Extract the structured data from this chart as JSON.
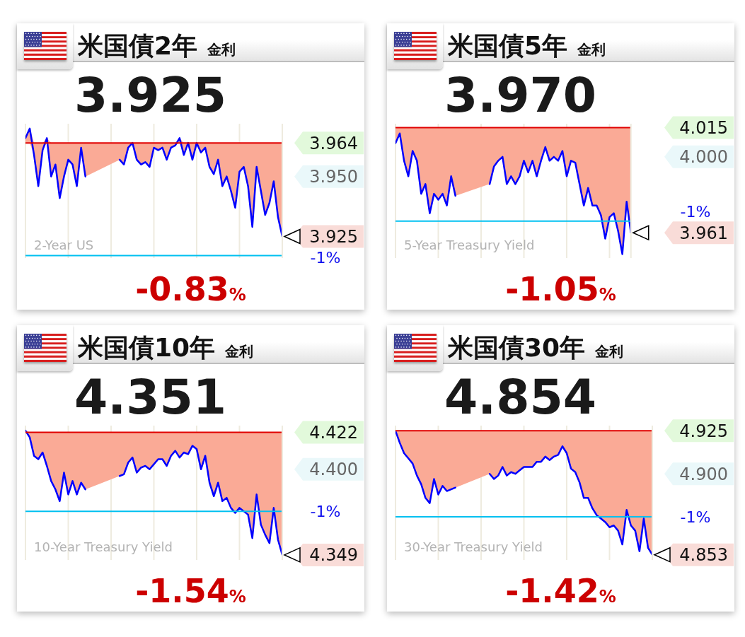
{
  "chart_data": [
    {
      "type": "line",
      "title": "米国債2年",
      "subtitle": "金利",
      "categories": [
        null,
        null,
        null,
        null,
        null,
        null,
        null,
        null,
        null,
        null,
        null,
        null,
        null,
        null,
        null,
        null,
        null,
        null,
        null,
        null,
        null,
        null,
        null,
        null,
        null,
        null,
        null,
        null,
        null,
        null,
        null,
        null,
        null,
        null,
        null,
        null,
        null,
        null,
        null,
        null,
        null,
        null,
        null,
        null,
        null,
        null,
        null,
        null,
        null,
        null,
        null,
        null,
        null,
        null,
        null,
        null,
        null,
        null,
        null,
        null,
        null
      ],
      "series": [
        {
          "type": "line",
          "color": "#0000ff",
          "values": [
            3.966,
            3.97,
            3.959,
            3.946,
            3.961,
            3.966,
            3.95,
            3.955,
            3.941,
            3.95,
            3.957,
            3.955,
            3.946,
            3.962,
            3.95,
            null,
            null,
            null,
            null,
            null,
            null,
            null,
            3.957,
            3.955,
            3.962,
            3.964,
            3.957,
            3.955,
            3.956,
            3.954,
            3.962,
            3.961,
            3.962,
            3.957,
            3.962,
            3.963,
            3.966,
            3.959,
            3.964,
            3.957,
            3.964,
            3.96,
            3.962,
            3.954,
            3.951,
            3.957,
            3.946,
            3.95,
            3.944,
            3.937,
            3.952,
            3.954,
            3.946,
            3.929,
            3.954,
            3.944,
            3.934,
            3.939,
            3.948,
            3.933,
            3.925
          ],
          "lower": [
            3.964,
            3.964,
            3.959,
            3.946,
            3.961,
            3.964,
            3.95,
            3.955,
            3.941,
            3.95,
            3.957,
            3.955,
            3.946,
            3.962,
            3.95,
            null,
            null,
            null,
            null,
            null,
            null,
            null,
            3.957,
            3.955,
            3.962,
            3.964,
            3.957,
            3.955,
            3.956,
            3.954,
            3.962,
            3.961,
            3.962,
            3.957,
            3.962,
            3.963,
            3.964,
            3.959,
            3.964,
            3.957,
            3.964,
            3.96,
            3.962,
            3.954,
            3.951,
            3.957,
            3.946,
            3.95,
            3.944,
            3.937,
            3.952,
            3.954,
            3.946,
            3.929,
            3.954,
            3.944,
            3.934,
            3.939,
            3.948,
            3.933,
            3.925
          ],
          "upper": [
            3.966,
            3.97,
            3.964,
            3.964,
            3.964,
            3.966,
            3.964,
            3.964,
            3.964,
            3.964,
            3.964,
            3.964,
            3.964,
            3.964,
            3.964,
            null,
            null,
            null,
            null,
            null,
            null,
            null,
            3.964,
            3.964,
            3.964,
            3.964,
            3.964,
            3.964,
            3.964,
            3.964,
            3.964,
            3.964,
            3.964,
            3.964,
            3.964,
            3.964,
            3.966,
            3.964,
            3.964,
            3.964,
            3.964,
            3.964,
            3.964,
            3.964,
            3.964,
            3.964,
            3.964,
            3.964,
            3.964,
            3.964,
            3.964,
            3.964,
            3.964,
            3.964,
            3.964,
            3.964,
            3.964,
            3.964,
            3.964,
            3.964,
            3.964
          ]
        }
      ],
      "ylim": [
        3.916,
        3.972
      ],
      "yticks": [
        {
          "value": 3.964,
          "label": "3.964"
        },
        {
          "value": 3.95,
          "label": "3.950"
        }
      ],
      "tick_labels": "y",
      "grid": "x",
      "ref_lines": [
        {
          "axis": "y",
          "value": 3.964,
          "color": "#e00000"
        },
        {
          "axis": "y",
          "value": 3.917,
          "color": "#00c0f0"
        }
      ],
      "annotations": [
        "3.925",
        "-0.83%",
        "2-Year US",
        "-1%",
        "3.925"
      ]
    },
    {
      "type": "line",
      "title": "米国債5年",
      "subtitle": "金利",
      "categories": [
        null,
        null,
        null,
        null,
        null,
        null,
        null,
        null,
        null,
        null,
        null,
        null,
        null,
        null,
        null,
        null,
        null,
        null,
        null,
        null,
        null,
        null,
        null,
        null,
        null,
        null,
        null,
        null,
        null,
        null,
        null,
        null,
        null,
        null,
        null,
        null,
        null,
        null,
        null,
        null,
        null,
        null,
        null,
        null,
        null,
        null,
        null,
        null,
        null,
        null,
        null,
        null,
        null,
        null,
        null,
        null
      ],
      "series": [
        {
          "type": "line",
          "color": "#0000ff",
          "values": [
            4.007,
            4.012,
            3.998,
            3.99,
            4.003,
            3.998,
            3.981,
            3.986,
            3.971,
            3.981,
            3.978,
            3.981,
            3.975,
            3.99,
            3.98,
            null,
            null,
            null,
            null,
            null,
            null,
            null,
            3.986,
            3.995,
            3.998,
            4.0,
            3.986,
            3.99,
            3.986,
            3.99,
            3.998,
            3.992,
            3.998,
            3.99,
            3.998,
            4.005,
            3.998,
            4.0,
            3.998,
            4.003,
            3.99,
            3.998,
            3.997,
            3.986,
            3.975,
            3.984,
            3.975,
            3.975,
            3.97,
            3.958,
            3.969,
            3.971,
            3.962,
            3.95,
            3.977,
            3.961
          ],
          "lower": [
            4.007,
            4.012,
            3.998,
            3.99,
            4.003,
            3.998,
            3.981,
            3.986,
            3.971,
            3.981,
            3.978,
            3.981,
            3.975,
            3.99,
            3.98,
            null,
            null,
            null,
            null,
            null,
            null,
            null,
            3.986,
            3.995,
            3.998,
            4.0,
            3.986,
            3.99,
            3.986,
            3.99,
            3.998,
            3.992,
            3.998,
            3.99,
            3.998,
            4.005,
            3.998,
            4.0,
            3.998,
            4.003,
            3.99,
            3.998,
            3.997,
            3.986,
            3.975,
            3.984,
            3.975,
            3.975,
            3.97,
            3.958,
            3.969,
            3.971,
            3.962,
            3.95,
            3.977,
            3.961
          ],
          "upper": [
            4.015,
            4.015,
            4.015,
            4.015,
            4.015,
            4.015,
            4.015,
            4.015,
            4.015,
            4.015,
            4.015,
            4.015,
            4.015,
            4.015,
            4.015,
            null,
            null,
            null,
            null,
            null,
            null,
            null,
            4.015,
            4.015,
            4.015,
            4.015,
            4.015,
            4.015,
            4.015,
            4.015,
            4.015,
            4.015,
            4.015,
            4.015,
            4.015,
            4.015,
            4.015,
            4.015,
            4.015,
            4.015,
            4.015,
            4.015,
            4.015,
            4.015,
            4.015,
            4.015,
            4.015,
            4.015,
            4.015,
            4.015,
            4.015,
            4.015,
            4.015,
            4.015,
            4.015,
            4.015
          ]
        }
      ],
      "ylim": [
        3.948,
        4.017
      ],
      "yticks": [
        {
          "value": 4.015,
          "label": "4.015"
        },
        {
          "value": 4,
          "label": "4.000"
        }
      ],
      "tick_labels": "y",
      "grid": "x",
      "ref_lines": [
        {
          "axis": "y",
          "value": 4.015,
          "color": "#e00000"
        },
        {
          "axis": "y",
          "value": 3.967,
          "color": "#00c0f0"
        }
      ],
      "annotations": [
        "3.970",
        "-1.05%",
        "5-Year Treasury Yield",
        "-1%",
        "3.961"
      ]
    },
    {
      "type": "line",
      "title": "米国債10年",
      "subtitle": "金利",
      "categories": [
        null,
        null,
        null,
        null,
        null,
        null,
        null,
        null,
        null,
        null,
        null,
        null,
        null,
        null,
        null,
        null,
        null,
        null,
        null,
        null,
        null,
        null,
        null,
        null,
        null,
        null,
        null,
        null,
        null,
        null,
        null,
        null,
        null,
        null,
        null,
        null,
        null,
        null,
        null,
        null,
        null,
        null,
        null,
        null,
        null,
        null,
        null,
        null,
        null,
        null,
        null,
        null,
        null,
        null,
        null,
        null,
        null,
        null,
        null,
        null,
        null
      ],
      "series": [
        {
          "type": "line",
          "color": "#0000ff",
          "values": [
            4.423,
            4.419,
            4.408,
            4.406,
            4.41,
            4.402,
            4.393,
            4.388,
            4.381,
            4.398,
            4.385,
            4.393,
            4.385,
            4.392,
            4.388,
            null,
            null,
            null,
            null,
            null,
            null,
            null,
            4.396,
            4.397,
            4.404,
            4.407,
            4.398,
            4.401,
            4.402,
            4.4,
            4.403,
            4.406,
            4.406,
            4.402,
            4.408,
            4.411,
            4.407,
            4.41,
            4.409,
            4.414,
            4.412,
            4.4,
            4.408,
            4.392,
            4.384,
            4.392,
            4.381,
            4.383,
            4.377,
            4.374,
            4.377,
            4.375,
            4.373,
            4.359,
            4.385,
            4.367,
            4.361,
            4.356,
            4.377,
            4.358,
            4.349
          ],
          "lower": [
            4.422,
            4.419,
            4.408,
            4.406,
            4.41,
            4.402,
            4.393,
            4.388,
            4.381,
            4.398,
            4.385,
            4.393,
            4.385,
            4.392,
            4.388,
            null,
            null,
            null,
            null,
            null,
            null,
            null,
            4.396,
            4.397,
            4.404,
            4.407,
            4.398,
            4.401,
            4.402,
            4.4,
            4.403,
            4.406,
            4.406,
            4.402,
            4.408,
            4.411,
            4.407,
            4.41,
            4.409,
            4.414,
            4.412,
            4.4,
            4.408,
            4.392,
            4.384,
            4.392,
            4.381,
            4.383,
            4.377,
            4.374,
            4.377,
            4.375,
            4.373,
            4.359,
            4.385,
            4.367,
            4.361,
            4.356,
            4.377,
            4.358,
            4.349
          ],
          "upper": [
            4.423,
            4.422,
            4.422,
            4.422,
            4.422,
            4.422,
            4.422,
            4.422,
            4.422,
            4.422,
            4.422,
            4.422,
            4.422,
            4.422,
            4.422,
            null,
            null,
            null,
            null,
            null,
            null,
            null,
            4.422,
            4.422,
            4.422,
            4.422,
            4.422,
            4.422,
            4.422,
            4.422,
            4.422,
            4.422,
            4.422,
            4.422,
            4.422,
            4.422,
            4.422,
            4.422,
            4.422,
            4.422,
            4.422,
            4.422,
            4.422,
            4.422,
            4.422,
            4.422,
            4.422,
            4.422,
            4.422,
            4.422,
            4.422,
            4.422,
            4.422,
            4.422,
            4.422,
            4.422,
            4.422,
            4.422,
            4.422,
            4.422,
            4.422
          ]
        }
      ],
      "ylim": [
        4.346,
        4.426
      ],
      "yticks": [
        {
          "value": 4.422,
          "label": "4.422"
        },
        {
          "value": 4.4,
          "label": "4.400"
        }
      ],
      "tick_labels": "y",
      "grid": "x",
      "ref_lines": [
        {
          "axis": "y",
          "value": 4.422,
          "color": "#e00000"
        },
        {
          "axis": "y",
          "value": 4.375,
          "color": "#00c0f0"
        }
      ],
      "annotations": [
        "4.351",
        "-1.54%",
        "10-Year Treasury Yield",
        "-1%",
        "4.349"
      ]
    },
    {
      "type": "line",
      "title": "米国債30年",
      "subtitle": "金利",
      "categories": [
        null,
        null,
        null,
        null,
        null,
        null,
        null,
        null,
        null,
        null,
        null,
        null,
        null,
        null,
        null,
        null,
        null,
        null,
        null,
        null,
        null,
        null,
        null,
        null,
        null,
        null,
        null,
        null,
        null,
        null,
        null,
        null,
        null,
        null,
        null,
        null,
        null,
        null,
        null,
        null,
        null,
        null,
        null,
        null,
        null,
        null,
        null,
        null,
        null,
        null,
        null,
        null,
        null,
        null,
        null,
        null,
        null,
        null,
        null,
        null,
        null
      ],
      "series": [
        {
          "type": "line",
          "color": "#0000ff",
          "values": [
            4.925,
            4.918,
            4.912,
            4.909,
            4.906,
            4.899,
            4.894,
            4.886,
            4.883,
            4.897,
            4.888,
            4.893,
            4.89,
            4.891,
            4.892,
            null,
            null,
            null,
            null,
            null,
            null,
            null,
            4.9,
            4.897,
            4.899,
            4.904,
            4.899,
            4.901,
            4.9,
            4.902,
            4.904,
            4.904,
            4.904,
            4.907,
            4.907,
            4.91,
            4.908,
            4.91,
            4.911,
            4.916,
            4.912,
            4.903,
            4.901,
            4.895,
            4.886,
            4.886,
            4.88,
            4.876,
            4.874,
            4.872,
            4.869,
            4.87,
            4.867,
            4.859,
            4.879,
            4.87,
            4.867,
            4.855,
            4.874,
            4.857,
            4.853
          ],
          "lower": [
            4.925,
            4.918,
            4.912,
            4.909,
            4.906,
            4.899,
            4.894,
            4.886,
            4.883,
            4.897,
            4.888,
            4.893,
            4.89,
            4.891,
            4.892,
            null,
            null,
            null,
            null,
            null,
            null,
            null,
            4.9,
            4.897,
            4.899,
            4.904,
            4.899,
            4.901,
            4.9,
            4.902,
            4.904,
            4.904,
            4.904,
            4.907,
            4.907,
            4.91,
            4.908,
            4.91,
            4.911,
            4.916,
            4.912,
            4.903,
            4.901,
            4.895,
            4.886,
            4.886,
            4.88,
            4.876,
            4.874,
            4.872,
            4.869,
            4.87,
            4.867,
            4.859,
            4.879,
            4.87,
            4.867,
            4.855,
            4.874,
            4.857,
            4.853
          ],
          "upper": [
            4.925,
            4.925,
            4.925,
            4.925,
            4.925,
            4.925,
            4.925,
            4.925,
            4.925,
            4.925,
            4.925,
            4.925,
            4.925,
            4.925,
            4.925,
            null,
            null,
            null,
            null,
            null,
            null,
            null,
            4.925,
            4.925,
            4.925,
            4.925,
            4.925,
            4.925,
            4.925,
            4.925,
            4.925,
            4.925,
            4.925,
            4.925,
            4.925,
            4.925,
            4.925,
            4.925,
            4.925,
            4.925,
            4.925,
            4.925,
            4.925,
            4.925,
            4.925,
            4.925,
            4.925,
            4.925,
            4.925,
            4.925,
            4.925,
            4.925,
            4.925,
            4.925,
            4.925,
            4.925,
            4.925,
            4.925,
            4.925,
            4.925,
            4.925
          ]
        }
      ],
      "ylim": [
        4.85,
        4.928
      ],
      "yticks": [
        {
          "value": 4.925,
          "label": "4.925"
        },
        {
          "value": 4.9,
          "label": "4.900"
        }
      ],
      "tick_labels": "y",
      "grid": "x",
      "ref_lines": [
        {
          "axis": "y",
          "value": 4.925,
          "color": "#e00000"
        },
        {
          "axis": "y",
          "value": 4.875,
          "color": "#00c0f0"
        }
      ],
      "annotations": [
        "4.854",
        "-1.42%",
        "30-Year Treasury Yield",
        "-1%",
        "4.853"
      ]
    }
  ]
}
